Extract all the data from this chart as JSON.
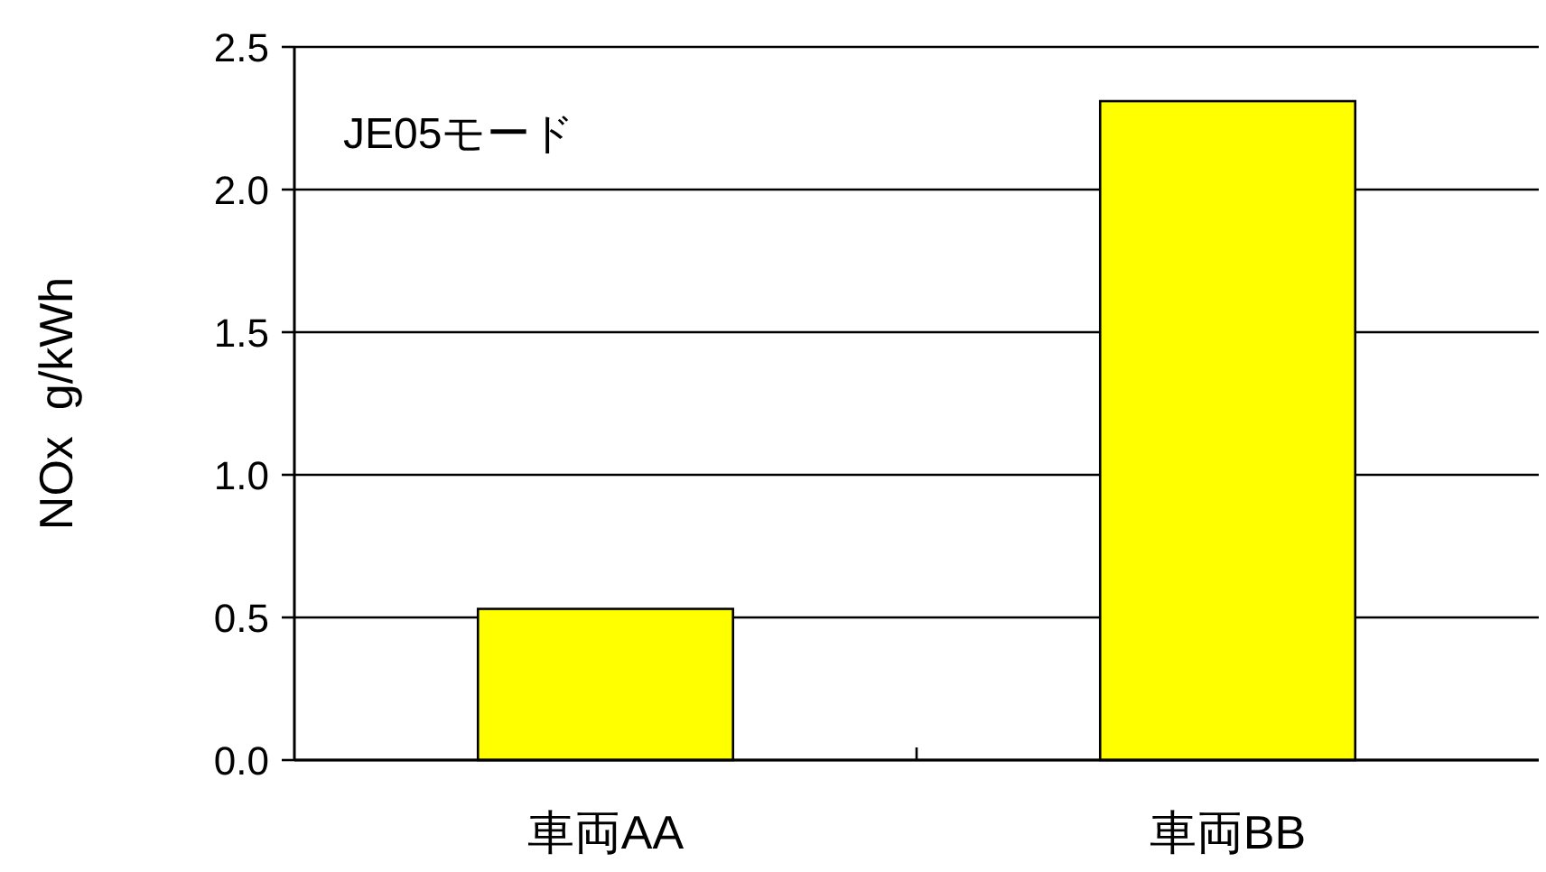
{
  "chart_data": {
    "type": "bar",
    "ylabel": "NOx  g/kWh",
    "annotations": [
      "JE05モード"
    ],
    "categories": [
      "車両AA",
      "車両BB"
    ],
    "values": [
      0.53,
      2.31
    ],
    "color": "#ffff00",
    "ylim": [
      0,
      2.5
    ],
    "yticks": [
      {
        "value": 0,
        "label": "0.0"
      },
      {
        "value": 0.5,
        "label": "0.5"
      },
      {
        "value": 1,
        "label": "1.0"
      },
      {
        "value": 1.5,
        "label": "1.5"
      },
      {
        "value": 2,
        "label": "2.0"
      },
      {
        "value": 2.5,
        "label": "2.5"
      }
    ],
    "grid": "y"
  }
}
